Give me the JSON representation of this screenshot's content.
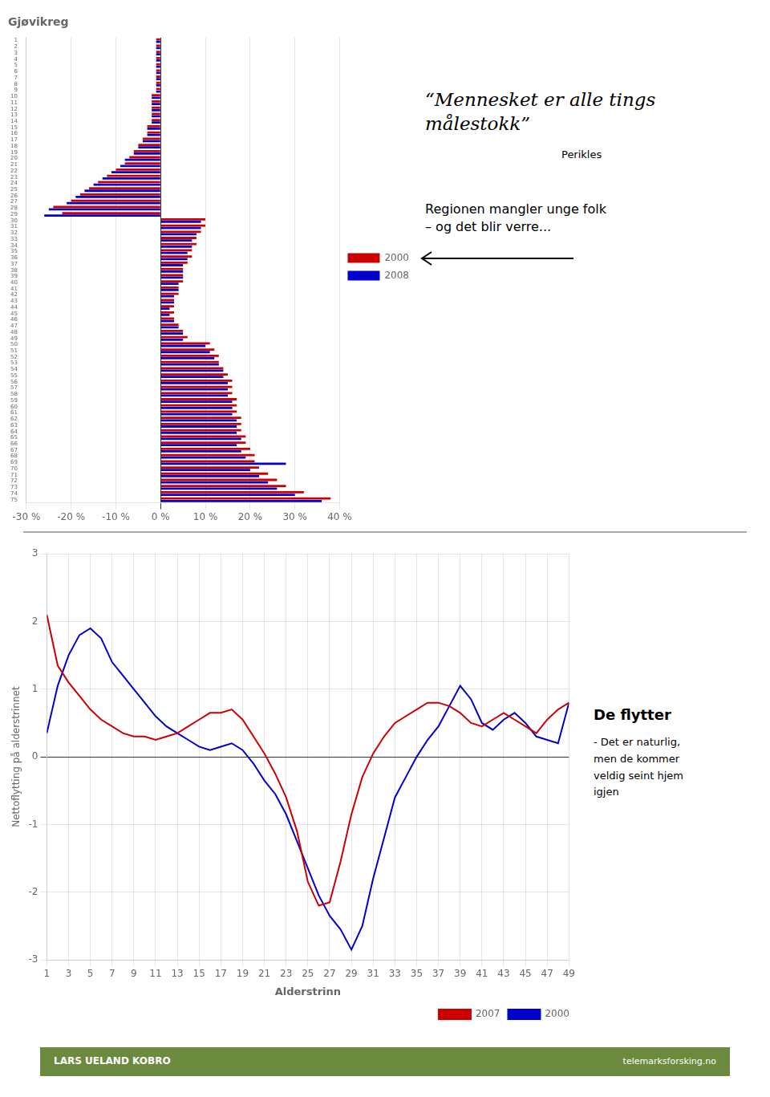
{
  "chart_data": [
    {
      "type": "bar",
      "orientation": "horizontal",
      "title": "Gjøvikreg",
      "categories": [
        "75",
        "74",
        "73",
        "72",
        "71",
        "70",
        "69",
        "68",
        "67",
        "66",
        "65",
        "64",
        "63",
        "62",
        "61",
        "60",
        "59",
        "58",
        "57",
        "56",
        "55",
        "54",
        "53",
        "52",
        "51",
        "50",
        "49",
        "48",
        "47",
        "46",
        "45",
        "44",
        "43",
        "42",
        "41",
        "40",
        "39",
        "38",
        "37",
        "36",
        "35",
        "34",
        "33",
        "32",
        "31",
        "30",
        "29",
        "28",
        "27",
        "26",
        "25",
        "24",
        "23",
        "22",
        "21",
        "20",
        "19",
        "18",
        "17",
        "16",
        "15",
        "14",
        "13",
        "12",
        "11",
        "10",
        "9",
        "8",
        "7",
        "6",
        "5",
        "4",
        "3",
        "2",
        "1"
      ],
      "series": [
        {
          "name": "2000",
          "color": "#cc0000",
          "values": [
            38,
            32,
            28,
            26,
            24,
            22,
            21,
            21,
            20,
            19,
            19,
            18,
            18,
            18,
            17,
            17,
            17,
            16,
            16,
            16,
            15,
            14,
            13,
            13,
            12,
            11,
            6,
            5,
            4,
            3,
            3,
            3,
            3,
            4,
            4,
            5,
            5,
            5,
            6,
            7,
            7,
            8,
            8,
            9,
            10,
            10,
            -22,
            -24,
            -20,
            -18,
            -16,
            -14,
            -12,
            -10,
            -8,
            -7,
            -6,
            -5,
            -4,
            -3,
            -3,
            -2,
            -2,
            -2,
            -2,
            -2,
            -1,
            -1,
            -1,
            -1,
            -1,
            -1,
            -1,
            -1,
            -1
          ]
        },
        {
          "name": "2008",
          "color": "#0000cc",
          "values": [
            36,
            30,
            26,
            24,
            22,
            20,
            28,
            19,
            18,
            17,
            18,
            17,
            17,
            17,
            16,
            16,
            16,
            15,
            15,
            15,
            14,
            14,
            13,
            12,
            11,
            10,
            5,
            5,
            4,
            3,
            2,
            2,
            3,
            3,
            4,
            4,
            5,
            5,
            5,
            6,
            6,
            7,
            7,
            8,
            9,
            9,
            -26,
            -25,
            -21,
            -19,
            -17,
            -15,
            -13,
            -11,
            -9,
            -8,
            -6,
            -5,
            -4,
            -3,
            -3,
            -2,
            -2,
            -2,
            -2,
            -2,
            -1,
            -1,
            -1,
            -1,
            -1,
            -1,
            -1,
            -1,
            -1
          ]
        }
      ],
      "xlim": [
        -30,
        40
      ],
      "xticks": [
        {
          "value": -30,
          "label": "-30 %"
        },
        {
          "value": -20,
          "label": "-20 %"
        },
        {
          "value": -10,
          "label": "-10 %"
        },
        {
          "value": 0,
          "label": "0 %"
        },
        {
          "value": 10,
          "label": "10 %"
        },
        {
          "value": 20,
          "label": "20 %"
        },
        {
          "value": 30,
          "label": "30 %"
        },
        {
          "value": 40,
          "label": "40 %"
        }
      ],
      "grid": true,
      "legend": "right",
      "annotations": [
        "“Mennesket er alle tings\nmålestokk”",
        "Perikles",
        "Regionen mangler unge folk\n– og det blir verre..."
      ]
    },
    {
      "type": "line",
      "x": [
        1,
        2,
        3,
        4,
        5,
        6,
        7,
        8,
        9,
        10,
        11,
        12,
        13,
        14,
        15,
        16,
        17,
        18,
        19,
        20,
        21,
        22,
        23,
        24,
        25,
        26,
        27,
        28,
        29,
        30,
        31,
        32,
        33,
        34,
        35,
        36,
        37,
        38,
        39,
        40,
        41,
        42,
        43,
        44,
        45,
        46,
        47,
        48,
        49
      ],
      "series": [
        {
          "name": "2007",
          "color": "#cc0000",
          "values": [
            2.1,
            1.35,
            1.1,
            0.9,
            0.7,
            0.55,
            0.45,
            0.35,
            0.3,
            0.3,
            0.25,
            0.3,
            0.35,
            0.45,
            0.55,
            0.65,
            0.65,
            0.7,
            0.55,
            0.3,
            0.05,
            -0.25,
            -0.6,
            -1.1,
            -1.85,
            -2.2,
            -2.15,
            -1.55,
            -0.85,
            -0.3,
            0.05,
            0.3,
            0.5,
            0.6,
            0.7,
            0.8,
            0.8,
            0.75,
            0.65,
            0.5,
            0.45,
            0.55,
            0.65,
            0.55,
            0.45,
            0.35,
            0.55,
            0.7,
            0.8
          ]
        },
        {
          "name": "2000",
          "color": "#0000cc",
          "values": [
            0.35,
            1.05,
            1.5,
            1.8,
            1.9,
            1.75,
            1.4,
            1.2,
            1.0,
            0.8,
            0.6,
            0.45,
            0.35,
            0.25,
            0.15,
            0.1,
            0.15,
            0.2,
            0.1,
            -0.1,
            -0.35,
            -0.55,
            -0.85,
            -1.25,
            -1.65,
            -2.05,
            -2.35,
            -2.55,
            -2.85,
            -2.5,
            -1.8,
            -1.2,
            -0.6,
            -0.3,
            0.0,
            0.25,
            0.45,
            0.75,
            1.05,
            0.85,
            0.5,
            0.4,
            0.55,
            0.65,
            0.5,
            0.3,
            0.25,
            0.2,
            0.8
          ]
        }
      ],
      "xlabel": "Alderstrinn",
      "ylabel": "Nettoflytting på alderstrinnet",
      "xlim": [
        1,
        49
      ],
      "xticks": [
        1,
        3,
        5,
        7,
        9,
        11,
        13,
        15,
        17,
        19,
        21,
        23,
        25,
        27,
        29,
        31,
        33,
        35,
        37,
        39,
        41,
        43,
        45,
        47,
        49
      ],
      "ylim": [
        -3,
        3
      ],
      "yticks": [
        -3,
        -2,
        -1,
        0,
        1,
        2,
        3
      ],
      "grid": true,
      "legend": "lower right",
      "annotations": [
        "De flytter",
        "- Det er naturlig,\nmen de kommer\nveldig seint hjem\nigjen",
        "LARS UELAND KOBRO",
        "telemarksforsking.no"
      ]
    }
  ]
}
